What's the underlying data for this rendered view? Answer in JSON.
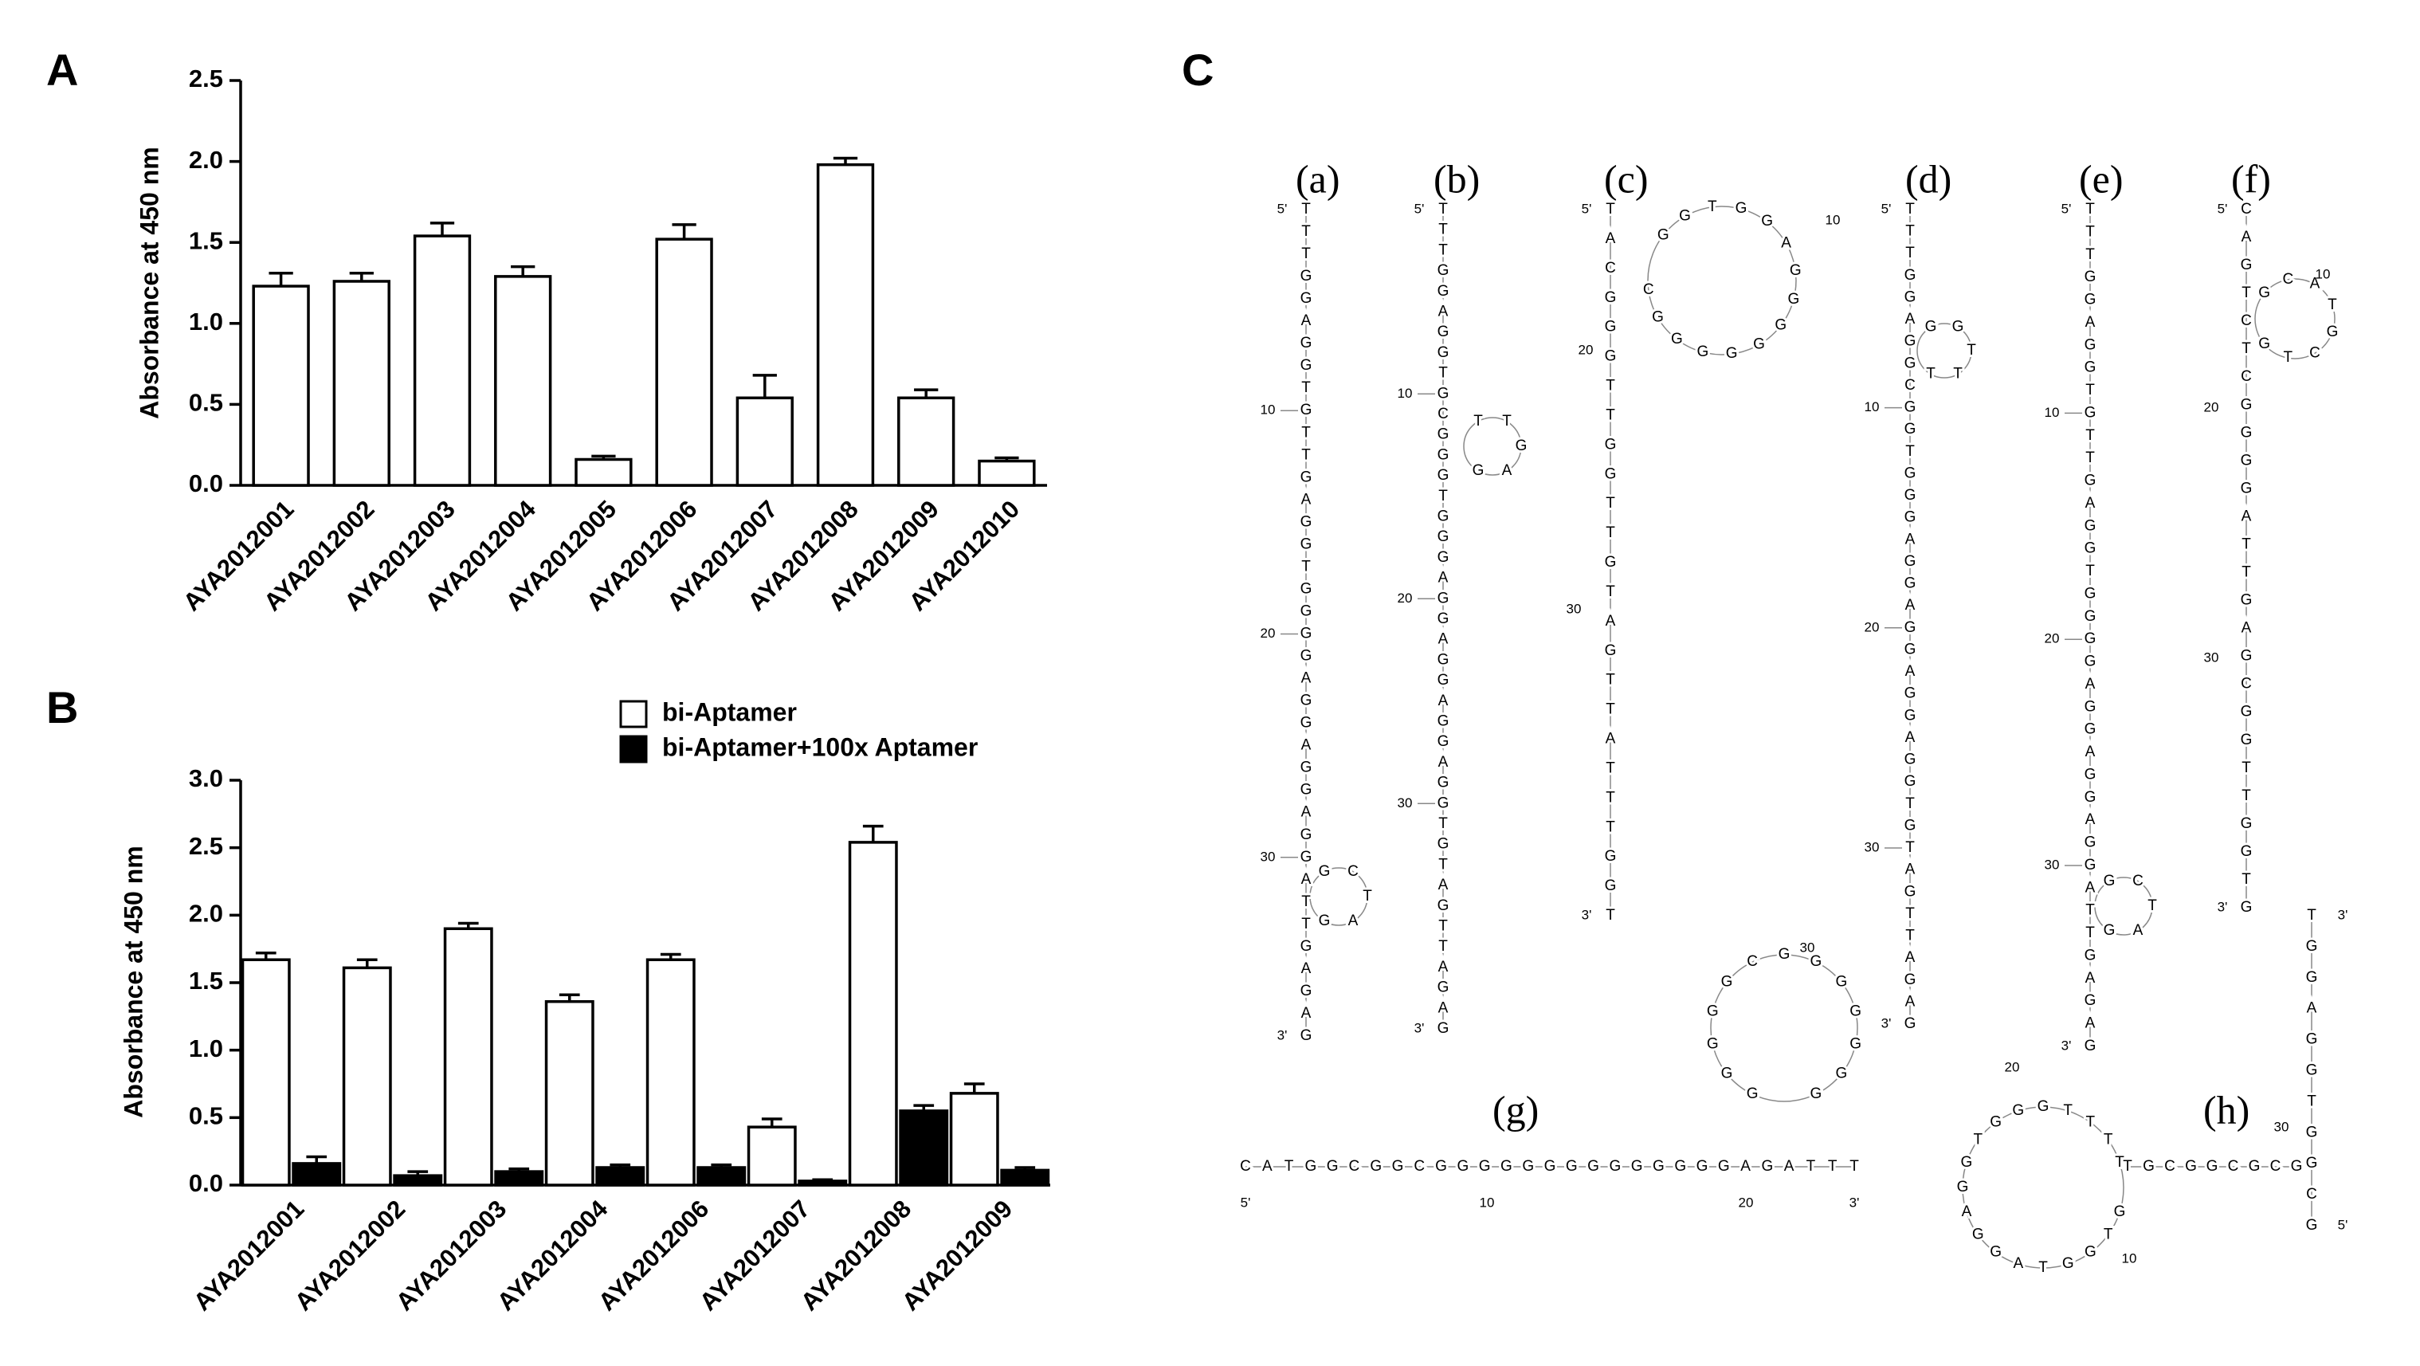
{
  "panel_labels": [
    "A",
    "B",
    "C"
  ],
  "chart_data": [
    {
      "type": "bar",
      "y_label": "Absorbance at 450 nm",
      "categories": [
        "AYA2012001",
        "AYA2012002",
        "AYA2012003",
        "AYA2012004",
        "AYA2012005",
        "AYA2012006",
        "AYA2012007",
        "AYA2012008",
        "AYA2012009",
        "AYA2012010"
      ],
      "series": [
        {
          "color": "#ffffff",
          "values": [
            1.23,
            1.26,
            1.54,
            1.29,
            0.16,
            1.52,
            0.54,
            1.98,
            0.54,
            0.15
          ],
          "errors": [
            0.08,
            0.05,
            0.08,
            0.06,
            0.02,
            0.09,
            0.14,
            0.04,
            0.05,
            0.02
          ]
        }
      ],
      "ylim": [
        0,
        2.5
      ],
      "yticks": [
        {
          "value": 0,
          "label": "0.0"
        },
        0.5,
        {
          "value": 1,
          "label": "1.0"
        },
        1.5,
        {
          "value": 2,
          "label": "2.0"
        },
        2.5
      ]
    },
    {
      "type": "bar",
      "y_label": "Absorbance at 450 nm",
      "categories": [
        "AYA2012001",
        "AYA2012002",
        "AYA2012003",
        "AYA2012004",
        "AYA2012006",
        "AYA2012007",
        "AYA2012008",
        "AYA2012009"
      ],
      "series": [
        {
          "name": "bi-Aptamer",
          "color": "#ffffff",
          "values": [
            1.67,
            1.61,
            1.9,
            1.36,
            1.67,
            0.43,
            2.54,
            0.68
          ],
          "errors": [
            0.05,
            0.06,
            0.04,
            0.05,
            0.04,
            0.06,
            0.12,
            0.07
          ]
        },
        {
          "name": "bi-Aptamer+100x Aptamer",
          "color": "#000000",
          "values": [
            0.16,
            0.07,
            0.1,
            0.13,
            0.13,
            0.03,
            0.55,
            0.11
          ],
          "errors": [
            0.05,
            0.03,
            0.02,
            0.02,
            0.02,
            0.01,
            0.04,
            0.02
          ]
        }
      ],
      "ylim": [
        0,
        3
      ],
      "yticks": [
        {
          "value": 0,
          "label": "0.0"
        },
        0.5,
        {
          "value": 1,
          "label": "1.0"
        },
        1.5,
        {
          "value": 2,
          "label": "2.0"
        },
        2.5,
        {
          "value": 3,
          "label": "3.0"
        }
      ],
      "legend": "top-right"
    }
  ],
  "structures": [
    {
      "label": "(a)",
      "column": "TTTGGAGGTGTTGAGGTGGGGAGGAGGAGGATTGAGAG",
      "loop": "GCTAG",
      "ends": [
        "5'",
        "3'"
      ],
      "numbers": [
        "10",
        "20",
        "30"
      ]
    },
    {
      "label": "(b)",
      "column": "TTTGGAGGTGCGGGTGGGAGGAGGAGGAGGTGTAGTTAGAG",
      "loop": "TTGAG",
      "ends": [
        "5'",
        "3'"
      ],
      "numbers": [
        "10",
        "20",
        "30"
      ]
    },
    {
      "label": "(c)",
      "column": "TACGGGTTGGTTGTAGTTATTTGGT",
      "loop": "GGTGGAGGGGGGGGC",
      "ends": [
        "5'",
        "3'"
      ],
      "numbers": [
        "10",
        "20",
        "30"
      ]
    },
    {
      "label": "(d)",
      "column": "TTTGGAGGCGGTGGGAGGAGGAGGAGGTGTAGTTAGAG",
      "loop": "GGTTT",
      "ends": [
        "5'",
        "3'"
      ],
      "numbers": [
        "10",
        "20",
        "30"
      ]
    },
    {
      "label": "(e)",
      "column": "TTTGGAGGTGTTGAGGTGGGGAGGAGGAGGATTGAGAG",
      "loop": "GCTAG",
      "ends": [
        "5'",
        "3'"
      ],
      "numbers": [
        "10",
        "20",
        "30"
      ]
    },
    {
      "label": "(f)",
      "column": "CAGTCTCGGGGATTGAGCGGTTGGTG",
      "loop": "GCATGCTG",
      "ends": [
        "5'",
        "3'"
      ],
      "numbers": [
        "10",
        "20",
        "30"
      ]
    },
    {
      "label": "(g)",
      "row": "CATGGCGGCGGGGGGGGGGGGGGAGATTT",
      "loop": "GGGGGCGGGGGGG",
      "ends": [
        "5'",
        "3'"
      ],
      "numbers": [
        "10",
        "20",
        "30"
      ]
    },
    {
      "label": "(h)",
      "column": "GCGGTGGAGGT",
      "row": "TGCGGCGCG",
      "loop": "GTGGTAGGAGGTGGGTTTT",
      "ends": [
        "5'",
        "3'"
      ],
      "numbers": [
        "20",
        "10",
        "30"
      ]
    }
  ]
}
